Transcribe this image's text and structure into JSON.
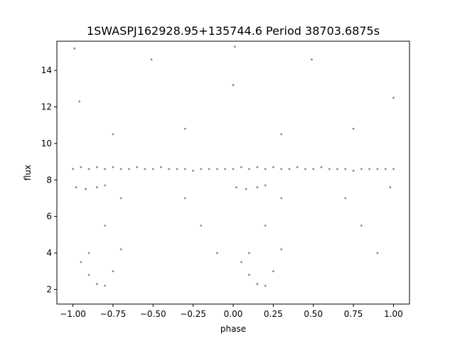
{
  "chart_data": {
    "type": "scatter",
    "title": "1SWASPJ162928.95+135744.6 Period 38703.6875s",
    "xlabel": "phase",
    "ylabel": "flux",
    "xlim": [
      -1.1,
      1.1
    ],
    "ylim": [
      1.2,
      15.6
    ],
    "xticks": [
      -1.0,
      -0.75,
      -0.5,
      -0.25,
      0.0,
      0.25,
      0.5,
      0.75,
      1.0
    ],
    "xtick_labels": [
      "−1.00",
      "−0.75",
      "−0.50",
      "−0.25",
      "0.00",
      "0.25",
      "0.50",
      "0.75",
      "1.00"
    ],
    "yticks": [
      2,
      4,
      6,
      8,
      10,
      12,
      14
    ],
    "ytick_labels": [
      "2",
      "4",
      "6",
      "8",
      "10",
      "12",
      "14"
    ],
    "grid": false,
    "marker_color": "#4a8bc2",
    "series": [
      {
        "points": [
          [
            -1.0,
            8.6
          ],
          [
            -0.95,
            8.7
          ],
          [
            -0.9,
            8.6
          ],
          [
            -0.85,
            8.7
          ],
          [
            -0.8,
            8.6
          ],
          [
            -0.75,
            8.7
          ],
          [
            -0.7,
            8.6
          ],
          [
            -0.65,
            8.6
          ],
          [
            -0.6,
            8.7
          ],
          [
            -0.55,
            8.6
          ],
          [
            -0.5,
            8.6
          ],
          [
            -0.45,
            8.7
          ],
          [
            -0.4,
            8.6
          ],
          [
            -0.35,
            8.6
          ],
          [
            -0.3,
            8.6
          ],
          [
            -0.25,
            8.5
          ],
          [
            -0.2,
            8.6
          ],
          [
            -0.15,
            8.6
          ],
          [
            -0.1,
            8.6
          ],
          [
            -0.05,
            8.6
          ],
          [
            0.0,
            8.6
          ],
          [
            0.05,
            8.7
          ],
          [
            0.1,
            8.6
          ],
          [
            0.15,
            8.7
          ],
          [
            0.2,
            8.6
          ],
          [
            0.25,
            8.7
          ],
          [
            0.3,
            8.6
          ],
          [
            0.35,
            8.6
          ],
          [
            0.4,
            8.7
          ],
          [
            0.45,
            8.6
          ],
          [
            0.5,
            8.6
          ],
          [
            0.55,
            8.7
          ],
          [
            0.6,
            8.6
          ],
          [
            0.65,
            8.6
          ],
          [
            0.7,
            8.6
          ],
          [
            0.75,
            8.5
          ],
          [
            0.8,
            8.6
          ],
          [
            0.85,
            8.6
          ],
          [
            0.9,
            8.6
          ],
          [
            0.95,
            8.6
          ],
          [
            1.0,
            8.6
          ],
          [
            -0.98,
            7.6
          ],
          [
            -0.92,
            7.5
          ],
          [
            -0.85,
            7.6
          ],
          [
            -0.8,
            7.7
          ],
          [
            0.02,
            7.6
          ],
          [
            0.08,
            7.5
          ],
          [
            0.15,
            7.6
          ],
          [
            0.2,
            7.7
          ],
          [
            0.98,
            7.6
          ],
          [
            -0.95,
            3.5
          ],
          [
            -0.9,
            2.8
          ],
          [
            -0.85,
            2.3
          ],
          [
            -0.8,
            2.2
          ],
          [
            -0.75,
            3.0
          ],
          [
            -0.7,
            4.2
          ],
          [
            0.05,
            3.5
          ],
          [
            0.1,
            2.8
          ],
          [
            0.15,
            2.3
          ],
          [
            0.2,
            2.2
          ],
          [
            0.25,
            3.0
          ],
          [
            0.3,
            4.2
          ],
          [
            -0.9,
            4.0
          ],
          [
            -0.8,
            5.5
          ],
          [
            -0.7,
            7.0
          ],
          [
            0.1,
            4.0
          ],
          [
            0.2,
            5.5
          ],
          [
            0.3,
            7.0
          ],
          [
            -0.3,
            7.0
          ],
          [
            -0.2,
            5.5
          ],
          [
            -0.1,
            4.0
          ],
          [
            0.7,
            7.0
          ],
          [
            0.8,
            5.5
          ],
          [
            0.9,
            4.0
          ],
          [
            -0.75,
            10.5
          ],
          [
            -0.3,
            10.8
          ],
          [
            0.3,
            10.5
          ],
          [
            0.75,
            10.8
          ],
          [
            -0.96,
            12.3
          ],
          [
            0.0,
            13.2
          ],
          [
            1.0,
            12.5
          ],
          [
            -0.51,
            14.6
          ],
          [
            0.49,
            14.6
          ],
          [
            -0.99,
            15.2
          ],
          [
            0.01,
            15.3
          ]
        ]
      }
    ]
  }
}
